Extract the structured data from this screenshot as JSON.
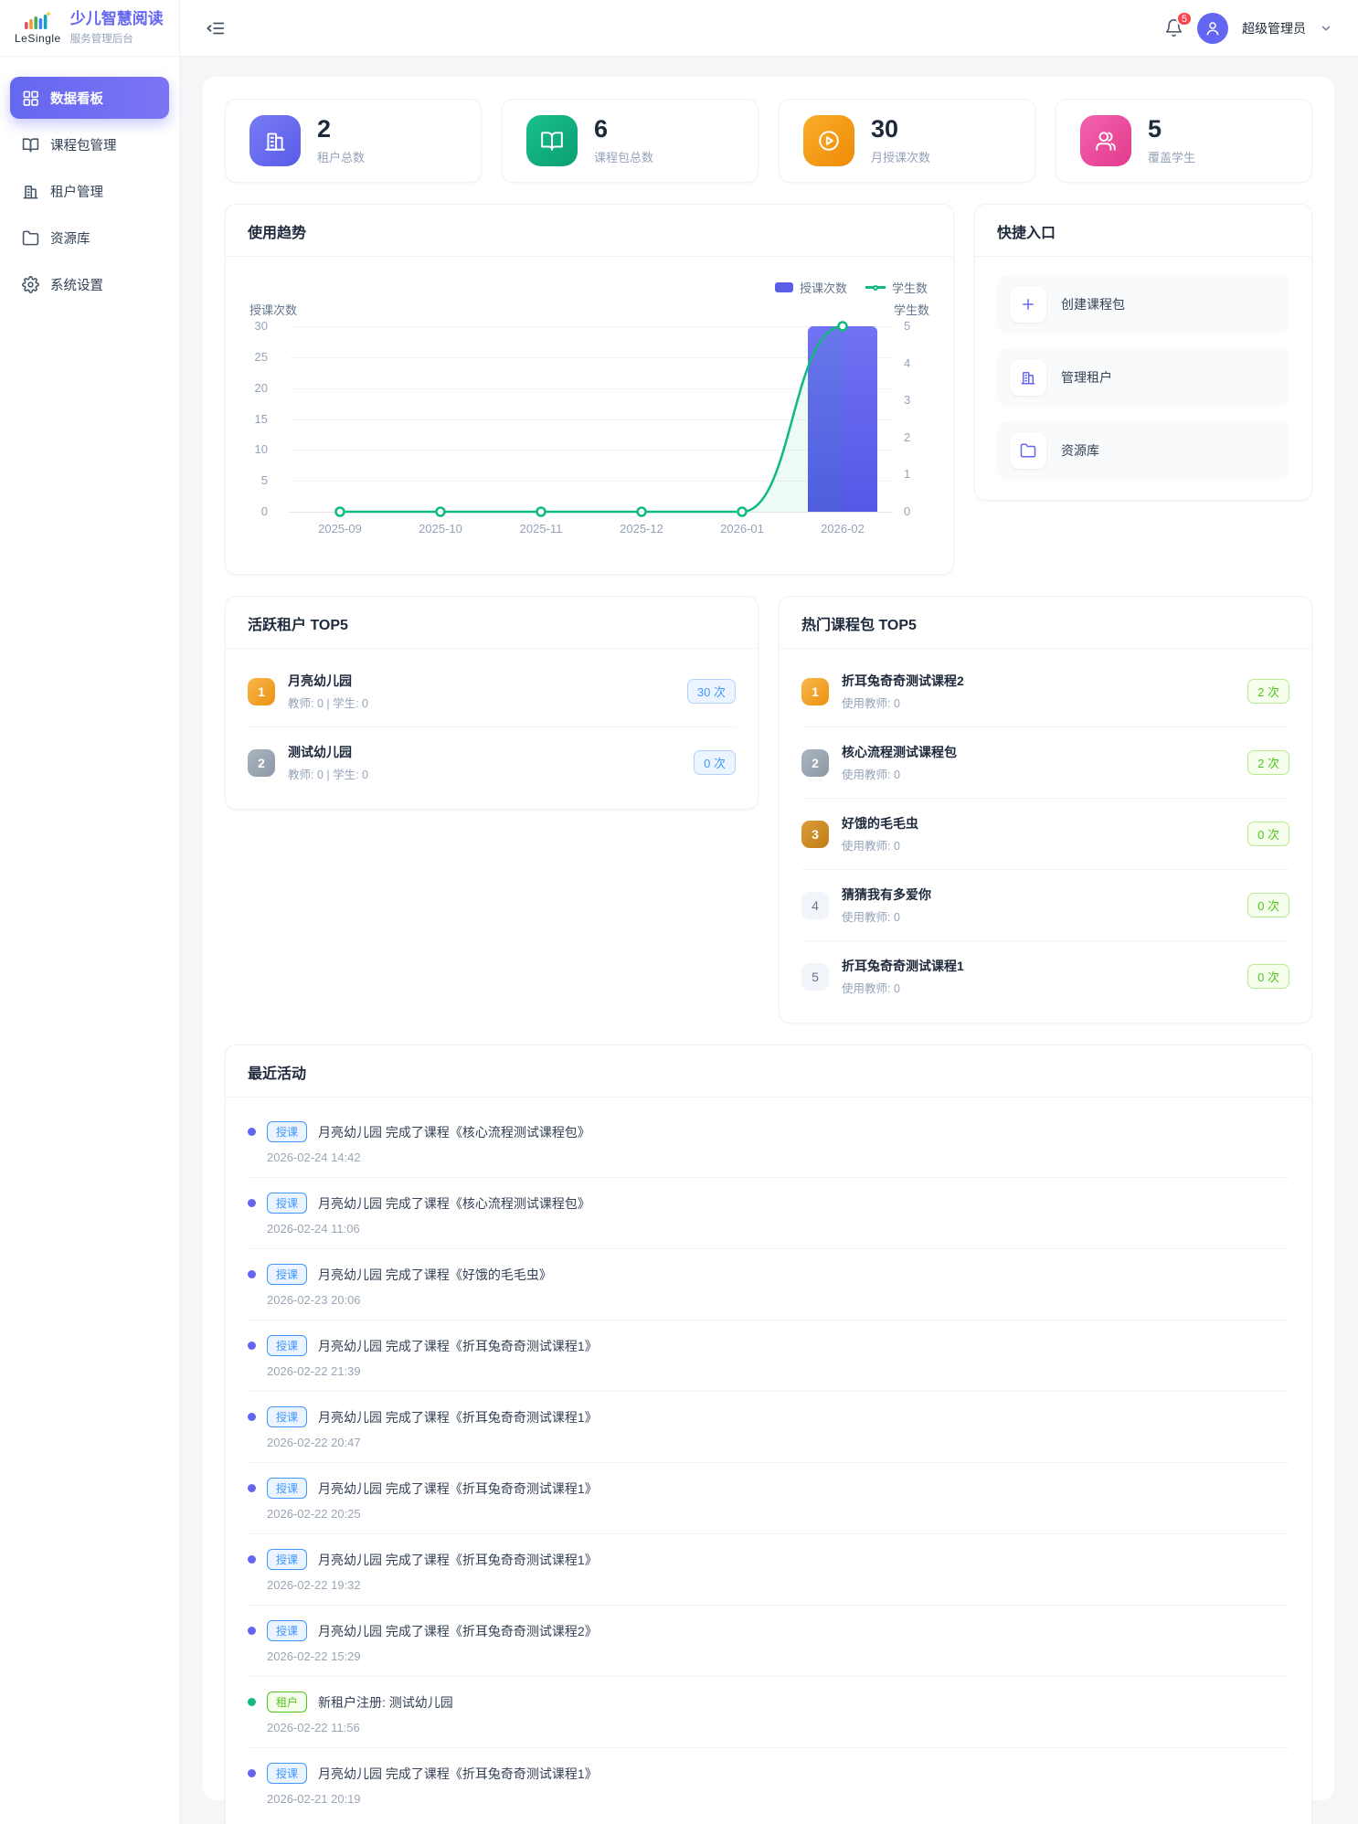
{
  "header": {
    "logo_text": "LeSingle",
    "app_title": "少儿智慧阅读",
    "app_subtitle": "服务管理后台",
    "notification_count": "5",
    "user_name": "超级管理员"
  },
  "sidebar": {
    "items": [
      {
        "label": "数据看板",
        "icon": "dashboard-grid-icon",
        "active": true
      },
      {
        "label": "课程包管理",
        "icon": "book-open-icon",
        "active": false
      },
      {
        "label": "租户管理",
        "icon": "building-icon",
        "active": false
      },
      {
        "label": "资源库",
        "icon": "folder-icon",
        "active": false
      },
      {
        "label": "系统设置",
        "icon": "gear-icon",
        "active": false
      }
    ]
  },
  "stats": {
    "cards": [
      {
        "value": "2",
        "label": "租户总数",
        "icon": "building-icon",
        "color": "#6366f1"
      },
      {
        "value": "6",
        "label": "课程包总数",
        "icon": "book-open-icon",
        "color": "#10b981"
      },
      {
        "value": "30",
        "label": "月授课次数",
        "icon": "play-circle-icon",
        "color": "#f59e0b"
      },
      {
        "value": "5",
        "label": "覆盖学生",
        "icon": "users-icon",
        "color": "#ec4899"
      }
    ]
  },
  "trend": {
    "title": "使用趋势",
    "legend_bar": "授课次数",
    "legend_line": "学生数",
    "left_axis_title": "授课次数",
    "right_axis_title": "学生数"
  },
  "chart_data": {
    "type": "bar+line",
    "title": "使用趋势",
    "categories": [
      "2025-09",
      "2025-10",
      "2025-11",
      "2025-12",
      "2026-01",
      "2026-02"
    ],
    "series": [
      {
        "name": "授课次数",
        "type": "bar",
        "axis": "left",
        "color": "#5b5fe8",
        "values": [
          0,
          0,
          0,
          0,
          0,
          30
        ]
      },
      {
        "name": "学生数",
        "type": "line",
        "axis": "right",
        "color": "#10b981",
        "values": [
          0,
          0,
          0,
          0,
          0,
          5
        ]
      }
    ],
    "left_axis": {
      "title": "授课次数",
      "min": 0,
      "max": 30,
      "ticks": [
        "30",
        "25",
        "20",
        "15",
        "10",
        "5",
        "0"
      ]
    },
    "right_axis": {
      "title": "学生数",
      "min": 0,
      "max": 5,
      "ticks": [
        "5",
        "4",
        "3",
        "2",
        "1",
        "0"
      ]
    },
    "grid": true,
    "legend_position": "top-right"
  },
  "quick": {
    "title": "快捷入口",
    "items": [
      {
        "label": "创建课程包",
        "icon": "plus-icon"
      },
      {
        "label": "管理租户",
        "icon": "building-icon"
      },
      {
        "label": "资源库",
        "icon": "folder-icon"
      }
    ]
  },
  "active_tenants": {
    "title": "活跃租户 TOP5",
    "items": [
      {
        "rank": "1",
        "name": "月亮幼儿园",
        "sub": "教师: 0 | 学生: 0",
        "count": "30 次"
      },
      {
        "rank": "2",
        "name": "测试幼儿园",
        "sub": "教师: 0 | 学生: 0",
        "count": "0 次"
      }
    ]
  },
  "hot_packages": {
    "title": "热门课程包 TOP5",
    "items": [
      {
        "rank": "1",
        "name": "折耳兔奇奇测试课程2",
        "sub": "使用教师: 0",
        "count": "2 次"
      },
      {
        "rank": "2",
        "name": "核心流程测试课程包",
        "sub": "使用教师: 0",
        "count": "2 次"
      },
      {
        "rank": "3",
        "name": "好饿的毛毛虫",
        "sub": "使用教师: 0",
        "count": "0 次"
      },
      {
        "rank": "4",
        "name": "猜猜我有多爱你",
        "sub": "使用教师: 0",
        "count": "0 次"
      },
      {
        "rank": "5",
        "name": "折耳兔奇奇测试课程1",
        "sub": "使用教师: 0",
        "count": "0 次"
      }
    ]
  },
  "activities": {
    "title": "最近活动",
    "items": [
      {
        "kind": "blue",
        "badge": "授课",
        "text": "月亮幼儿园 完成了课程《核心流程测试课程包》",
        "time": "2026-02-24 14:42"
      },
      {
        "kind": "blue",
        "badge": "授课",
        "text": "月亮幼儿园 完成了课程《核心流程测试课程包》",
        "time": "2026-02-24 11:06"
      },
      {
        "kind": "blue",
        "badge": "授课",
        "text": "月亮幼儿园 完成了课程《好饿的毛毛虫》",
        "time": "2026-02-23 20:06"
      },
      {
        "kind": "blue",
        "badge": "授课",
        "text": "月亮幼儿园 完成了课程《折耳兔奇奇测试课程1》",
        "time": "2026-02-22 21:39"
      },
      {
        "kind": "blue",
        "badge": "授课",
        "text": "月亮幼儿园 完成了课程《折耳兔奇奇测试课程1》",
        "time": "2026-02-22 20:47"
      },
      {
        "kind": "blue",
        "badge": "授课",
        "text": "月亮幼儿园 完成了课程《折耳兔奇奇测试课程1》",
        "time": "2026-02-22 20:25"
      },
      {
        "kind": "blue",
        "badge": "授课",
        "text": "月亮幼儿园 完成了课程《折耳兔奇奇测试课程1》",
        "time": "2026-02-22 19:32"
      },
      {
        "kind": "blue",
        "badge": "授课",
        "text": "月亮幼儿园 完成了课程《折耳兔奇奇测试课程2》",
        "time": "2026-02-22 15:29"
      },
      {
        "kind": "green",
        "badge": "租户",
        "text": "新租户注册: 测试幼儿园",
        "time": "2026-02-22 11:56"
      },
      {
        "kind": "blue",
        "badge": "授课",
        "text": "月亮幼儿园 完成了课程《折耳兔奇奇测试课程1》",
        "time": "2026-02-21 20:19"
      }
    ]
  },
  "colors": {
    "primary": "#6366f1",
    "green": "#10b981",
    "orange": "#f59e0b",
    "pink": "#ec4899",
    "bar": "#5b5fe8",
    "line": "#10b981",
    "blue_tag": "#4096ff",
    "green_tag": "#52c41a",
    "notification_badge": "#f5474d"
  }
}
